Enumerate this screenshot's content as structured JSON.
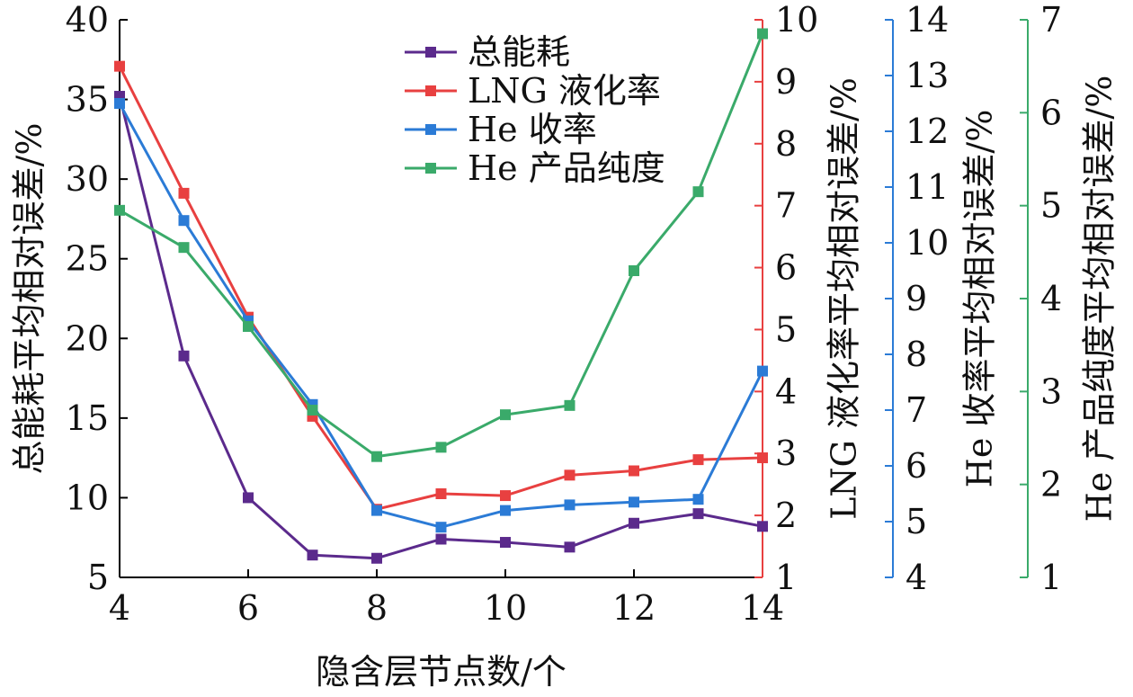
{
  "chart_data": {
    "type": "line",
    "xlabel": "隐含层节点数/个",
    "x": [
      4,
      5,
      6,
      7,
      8,
      9,
      10,
      11,
      12,
      13,
      14
    ],
    "xlim": [
      4,
      14
    ],
    "xticks": [
      4,
      6,
      8,
      10,
      12,
      14
    ],
    "grid": false,
    "legend_position": "top-center",
    "axes": [
      {
        "id": "total_energy",
        "label": "总能耗平均相对误差/%",
        "side": "left",
        "range": [
          5,
          40
        ],
        "ticks": [
          5,
          10,
          15,
          20,
          25,
          30,
          35,
          40
        ],
        "color": "#000000"
      },
      {
        "id": "lng",
        "label": "LNG 液化率平均相对误差/%",
        "side": "right",
        "range": [
          1,
          10
        ],
        "ticks": [
          1,
          2,
          3,
          4,
          5,
          6,
          7,
          8,
          9,
          10
        ],
        "color": "#e84040"
      },
      {
        "id": "he_recovery",
        "label": "He 收率平均相对误差/%",
        "side": "right",
        "range": [
          4,
          14
        ],
        "ticks": [
          4,
          5,
          6,
          7,
          8,
          9,
          10,
          11,
          12,
          13,
          14
        ],
        "color": "#2b7bd6"
      },
      {
        "id": "he_purity",
        "label": "He 产品纯度平均相对误差/%",
        "side": "right",
        "range": [
          1,
          7
        ],
        "ticks": [
          1,
          2,
          3,
          4,
          5,
          6,
          7
        ],
        "color": "#3aaa6a"
      }
    ],
    "series": [
      {
        "name": "总能耗",
        "axis": "total_energy",
        "color": "#5b2a8c",
        "values": [
          35.2,
          18.9,
          10.0,
          6.4,
          6.2,
          7.4,
          7.2,
          6.9,
          8.4,
          9.0,
          8.2
        ]
      },
      {
        "name": "LNG 液化率",
        "axis": "lng",
        "color": "#e84040",
        "values": [
          9.25,
          7.2,
          5.2,
          3.6,
          2.1,
          2.35,
          2.32,
          2.65,
          2.72,
          2.9,
          2.93
        ]
      },
      {
        "name": "He 收率",
        "axis": "he_recovery",
        "color": "#2b7bd6",
        "values": [
          12.5,
          10.4,
          8.6,
          7.1,
          5.2,
          4.9,
          5.2,
          5.3,
          5.35,
          5.4,
          7.7
        ]
      },
      {
        "name": "He 产品纯度",
        "axis": "he_purity",
        "color": "#3aaa6a",
        "values": [
          4.95,
          4.55,
          3.7,
          2.8,
          2.3,
          2.4,
          2.75,
          2.85,
          4.3,
          5.15,
          6.85
        ]
      }
    ]
  }
}
